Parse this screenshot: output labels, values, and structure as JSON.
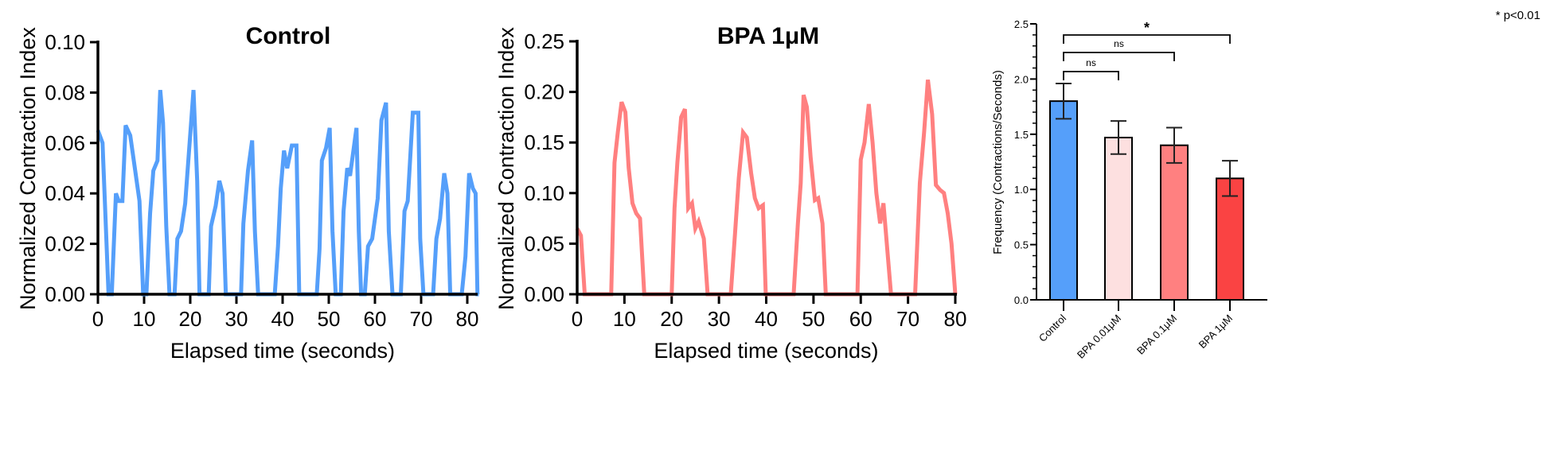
{
  "chart_data": [
    {
      "type": "line",
      "title": "Control",
      "xlabel": "Elapsed time (seconds)",
      "ylabel": "Normalized Contraction Index",
      "xlim": [
        0,
        82.5
      ],
      "ylim": [
        0,
        0.1
      ],
      "xticks": [
        "0",
        "10",
        "20",
        "30",
        "40",
        "50",
        "60",
        "70",
        "80"
      ],
      "yticks": [
        "0.00",
        "0.02",
        "0.04",
        "0.06",
        "0.08",
        "0.10"
      ],
      "color": "#559ffa",
      "x": [
        0,
        1,
        2.3,
        3,
        3.9,
        4.5,
        5.3,
        6,
        7,
        8,
        9,
        9.8,
        10.5,
        11.3,
        12,
        12.9,
        13.5,
        14.1,
        14.8,
        15.5,
        16.6,
        17.2,
        18,
        18.9,
        20.7,
        21.5,
        22,
        24,
        24.5,
        25.5,
        26.3,
        27,
        27.7,
        31,
        31.5,
        32.5,
        33.4,
        34,
        34.7,
        38.3,
        39,
        39.6,
        40.3,
        41,
        42,
        43,
        43.6,
        47.4,
        48,
        48.5,
        49.4,
        50.2,
        50.8,
        51.5,
        52.6,
        53.2,
        54,
        54.6,
        56,
        56.5,
        57,
        57.8,
        58.5,
        59.4,
        60.6,
        61.4,
        62.4,
        63,
        63.8,
        65.6,
        66.4,
        67.1,
        68.2,
        69.4,
        69.8,
        70.5,
        72.6,
        73.3,
        74.1,
        75,
        75.7,
        76.3,
        78.8,
        79.6,
        80.4,
        81.2,
        81.8,
        82.2,
        82.5
      ],
      "y": [
        0.065,
        0.06,
        0,
        0,
        0.04,
        0.037,
        0.037,
        0.067,
        0.063,
        0.05,
        0.037,
        0,
        0,
        0.032,
        0.049,
        0.053,
        0.081,
        0.068,
        0.027,
        0,
        0,
        0.022,
        0.025,
        0.036,
        0.081,
        0.045,
        0,
        0,
        0.027,
        0.035,
        0.045,
        0.04,
        0,
        0,
        0.028,
        0.049,
        0.061,
        0.025,
        0,
        0,
        0.019,
        0.042,
        0.057,
        0.05,
        0.059,
        0.059,
        0,
        0,
        0.018,
        0.053,
        0.058,
        0.066,
        0.025,
        0,
        0,
        0.033,
        0.05,
        0.047,
        0.066,
        0.025,
        0,
        0,
        0.019,
        0.022,
        0.038,
        0.069,
        0.076,
        0.025,
        0,
        0,
        0.033,
        0.037,
        0.072,
        0.072,
        0.022,
        0,
        0,
        0.022,
        0.03,
        0.048,
        0.04,
        0,
        0,
        0.015,
        0.048,
        0.042,
        0.04,
        0,
        0
      ]
    },
    {
      "type": "line",
      "title": "BPA 1μM",
      "xlabel": "Elapsed time (seconds)",
      "ylabel": "Normalized Contraction Index",
      "xlim": [
        0,
        80
      ],
      "ylim": [
        0,
        0.25
      ],
      "xticks": [
        "0",
        "10",
        "20",
        "30",
        "40",
        "50",
        "60",
        "70",
        "80"
      ],
      "yticks": [
        "0.00",
        "0.05",
        "0.10",
        "0.15",
        "0.20",
        "0.25"
      ],
      "color": "#ff8080",
      "x": [
        0,
        0.8,
        1.6,
        7.2,
        7.9,
        8.6,
        9.4,
        10.2,
        10.9,
        11.7,
        12.5,
        13.3,
        14.2,
        20,
        20.6,
        21.2,
        22,
        22.8,
        23.5,
        24.3,
        25,
        25.7,
        26.8,
        27.6,
        32.5,
        33.4,
        34.2,
        35.1,
        35.9,
        36.8,
        37.6,
        38.4,
        39.3,
        39.9,
        45.8,
        46.7,
        47.3,
        47.9,
        48.6,
        49.4,
        50.3,
        51,
        51.9,
        52.6,
        59.3,
        60,
        60.8,
        61.7,
        62.5,
        63.3,
        64.1,
        64.8,
        66.4,
        71.5,
        72.5,
        73.4,
        74.2,
        75.1,
        75.9,
        76.8,
        77.6,
        78.4,
        79.2,
        80
      ],
      "y": [
        0.065,
        0.058,
        0,
        0,
        0.13,
        0.16,
        0.19,
        0.18,
        0.125,
        0.09,
        0.08,
        0.075,
        0,
        0,
        0.085,
        0.13,
        0.175,
        0.183,
        0.085,
        0.09,
        0.065,
        0.072,
        0.055,
        0,
        0,
        0.06,
        0.115,
        0.16,
        0.155,
        0.12,
        0.095,
        0.085,
        0.088,
        0,
        0,
        0.07,
        0.11,
        0.197,
        0.185,
        0.135,
        0.093,
        0.095,
        0.07,
        0,
        0,
        0.133,
        0.15,
        0.188,
        0.15,
        0.1,
        0.07,
        0.09,
        0,
        0,
        0.11,
        0.16,
        0.212,
        0.178,
        0.108,
        0.103,
        0.1,
        0.08,
        0.05,
        0
      ]
    },
    {
      "type": "bar",
      "title": "",
      "xlabel": "",
      "ylabel": "Frequency (Contractions/Seconds)",
      "ylim": [
        0,
        2.5
      ],
      "yticks": [
        "0.0",
        "0.5",
        "1.0",
        "1.5",
        "2.0",
        "2.5"
      ],
      "categories": [
        "Control",
        "BPA 0.01μM",
        "BPA 0.1μM",
        "BPA 1μM"
      ],
      "values": [
        1.8,
        1.47,
        1.4,
        1.1
      ],
      "errors": [
        0.16,
        0.15,
        0.16,
        0.16
      ],
      "colors": [
        "#559ffa",
        "#fde0e0",
        "#ff8080",
        "#fa4343"
      ],
      "comparisons": [
        {
          "from": 0,
          "to": 1,
          "label": "ns"
        },
        {
          "from": 0,
          "to": 2,
          "label": "ns"
        },
        {
          "from": 0,
          "to": 3,
          "label": "*"
        }
      ],
      "annotation": "* p<0.01"
    }
  ]
}
